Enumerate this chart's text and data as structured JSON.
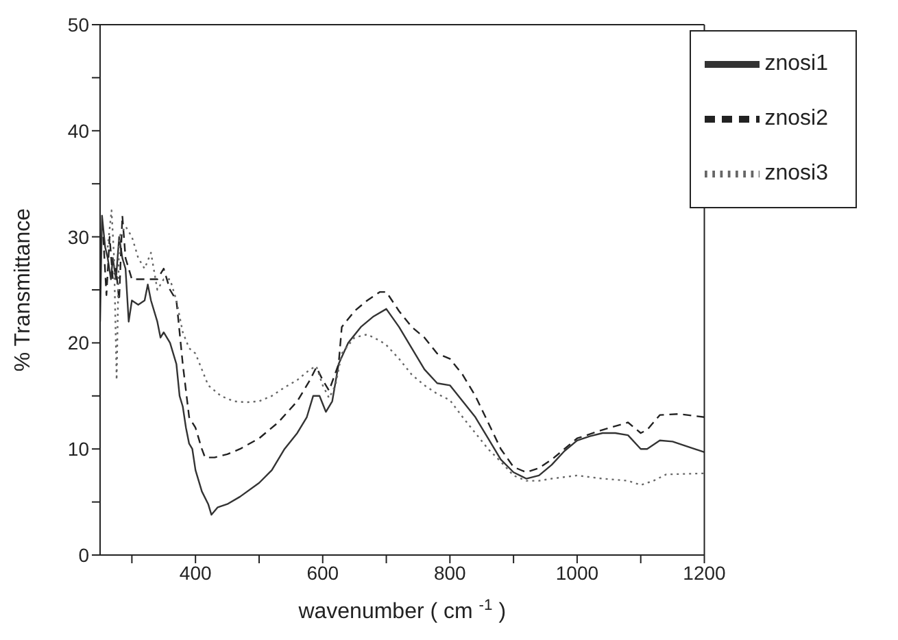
{
  "chart_data": {
    "type": "line",
    "xlabel": "wavenumber ( cm $^{-1}$ )",
    "ylabel": "% Transmittance",
    "xlim": [
      250,
      1200
    ],
    "ylim": [
      0,
      50
    ],
    "xticks": [
      {
        "value": 300,
        "label": null
      },
      400,
      {
        "value": 500,
        "label": null
      },
      600,
      {
        "value": 700,
        "label": null
      },
      800,
      {
        "value": 900,
        "label": null
      },
      1000,
      {
        "value": 1100,
        "label": null
      },
      1200
    ],
    "yticks": [
      0,
      {
        "value": 5,
        "label": null
      },
      10,
      {
        "value": 15,
        "label": null
      },
      20,
      {
        "value": 25,
        "label": null
      },
      30,
      {
        "value": 35,
        "label": null
      },
      40,
      {
        "value": 45,
        "label": null
      },
      50
    ],
    "grid": false,
    "legend": "top right",
    "marker": "none",
    "series": [
      {
        "name": "znosi1",
        "color": "#333333",
        "line_style": "solid",
        "x": [
          250,
          253,
          258,
          262,
          267,
          270,
          275,
          280,
          285,
          290,
          295,
          300,
          310,
          320,
          325,
          330,
          340,
          345,
          350,
          360,
          365,
          370,
          375,
          380,
          385,
          390,
          395,
          400,
          410,
          420,
          425,
          435,
          450,
          470,
          500,
          520,
          540,
          560,
          575,
          585,
          595,
          605,
          615,
          625,
          640,
          660,
          680,
          700,
          720,
          740,
          760,
          780,
          800,
          820,
          840,
          860,
          880,
          900,
          920,
          940,
          960,
          980,
          1000,
          1020,
          1040,
          1060,
          1080,
          1100,
          1110,
          1130,
          1150,
          1170,
          1200
        ],
        "values": [
          22,
          32,
          29,
          28,
          26,
          28,
          26,
          30,
          28,
          27,
          22,
          24,
          23.6,
          24,
          25.5,
          24,
          22,
          20.5,
          21,
          20,
          19,
          18,
          15,
          14,
          12,
          10.5,
          10,
          8,
          6,
          4.8,
          3.8,
          4.5,
          4.8,
          5.5,
          6.8,
          8,
          10,
          11.5,
          13,
          15,
          15,
          13.5,
          14.5,
          18,
          20,
          21.5,
          22.5,
          23.2,
          21.5,
          19.5,
          17.5,
          16.2,
          16,
          14.5,
          13,
          11,
          9,
          7.8,
          7.2,
          7.5,
          8.5,
          9.8,
          10.8,
          11.2,
          11.5,
          11.5,
          11.3,
          10,
          10,
          10.8,
          10.7,
          10.3,
          9.7
        ]
      },
      {
        "name": "znosi2",
        "color": "#222222",
        "line_style": "dashed",
        "x": [
          255,
          260,
          265,
          270,
          275,
          280,
          285,
          290,
          300,
          320,
          340,
          350,
          360,
          370,
          380,
          390,
          400,
          410,
          415,
          430,
          450,
          470,
          500,
          530,
          560,
          580,
          590,
          600,
          610,
          625,
          630,
          650,
          670,
          690,
          700,
          720,
          740,
          760,
          780,
          800,
          820,
          840,
          860,
          880,
          900,
          920,
          940,
          960,
          980,
          1000,
          1040,
          1080,
          1100,
          1110,
          1130,
          1160,
          1200
        ],
        "values": [
          30,
          24.5,
          30,
          26,
          27,
          24,
          32,
          28,
          26,
          26,
          26,
          27,
          25,
          24,
          18,
          13,
          12,
          10,
          9.2,
          9.2,
          9.5,
          10,
          11,
          12.5,
          14.5,
          16.5,
          17.7,
          16.5,
          15.5,
          18,
          21.5,
          23,
          24,
          24.8,
          24.8,
          23,
          21.5,
          20.5,
          19,
          18.5,
          17,
          15,
          12.5,
          10,
          8.3,
          7.8,
          8.2,
          9,
          10,
          11,
          11.8,
          12.5,
          11.5,
          11.8,
          13.2,
          13.3,
          13
        ]
      },
      {
        "name": "znosi3",
        "color": "#666666",
        "line_style": "dotted",
        "x": [
          262,
          268,
          272,
          276,
          280,
          290,
          300,
          310,
          320,
          330,
          340,
          350,
          360,
          370,
          380,
          390,
          400,
          410,
          420,
          440,
          460,
          480,
          500,
          520,
          540,
          560,
          580,
          590,
          600,
          610,
          620,
          630,
          650,
          670,
          690,
          700,
          720,
          740,
          760,
          780,
          800,
          820,
          840,
          860,
          880,
          900,
          920,
          940,
          960,
          1000,
          1040,
          1080,
          1100,
          1120,
          1140,
          1200
        ],
        "values": [
          29,
          32.5,
          28,
          16.5,
          30,
          31,
          30,
          28,
          27,
          28.5,
          25,
          26,
          26,
          24,
          21,
          19.5,
          19,
          17.5,
          16,
          15,
          14.5,
          14.4,
          14.5,
          15,
          15.8,
          16.5,
          17.5,
          17.8,
          16,
          14.8,
          16,
          19,
          20.5,
          20.8,
          20.2,
          19.8,
          18.5,
          17,
          16,
          15.2,
          14.6,
          13,
          11.5,
          10,
          8.8,
          7.5,
          7,
          7,
          7.2,
          7.5,
          7.2,
          7,
          6.6,
          7,
          7.6,
          7.7
        ]
      }
    ]
  }
}
